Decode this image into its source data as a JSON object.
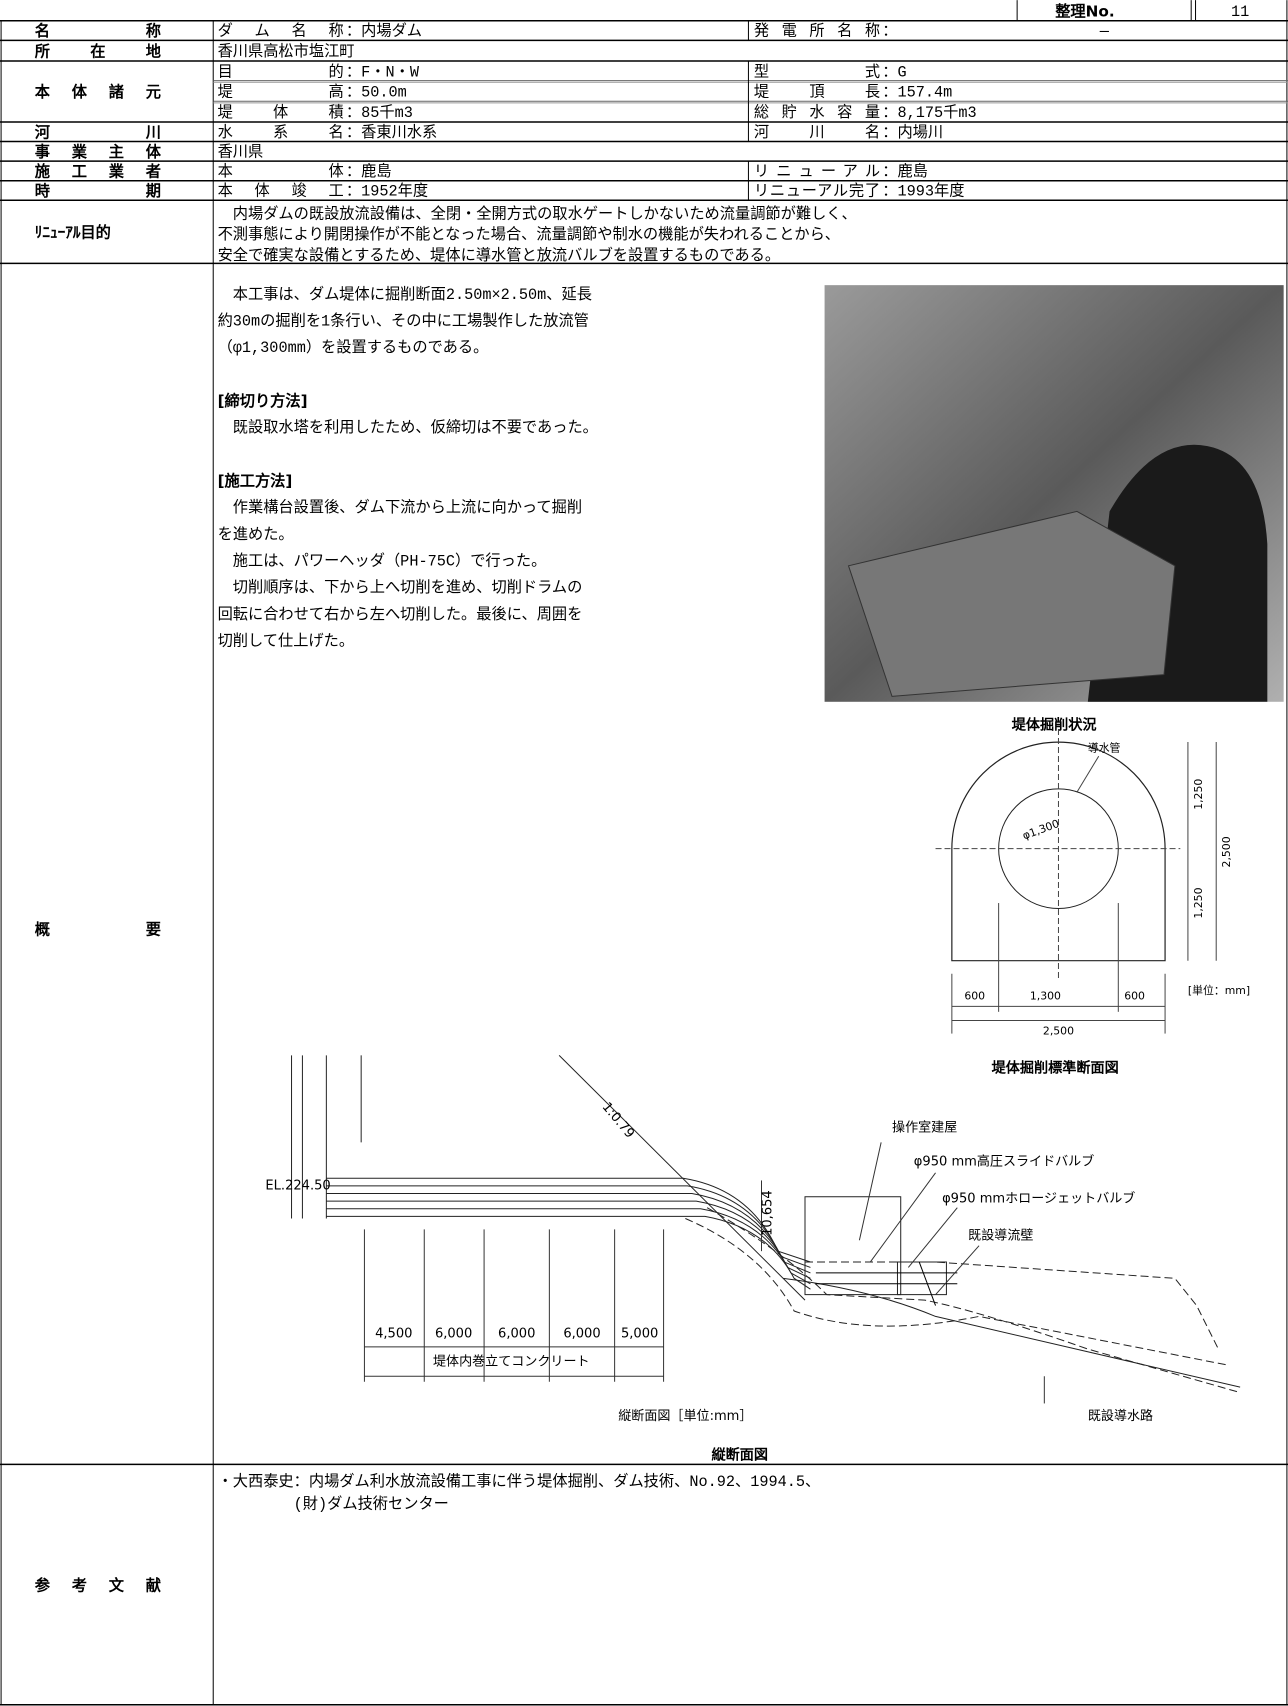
{
  "header": {
    "no_label": "整理No.",
    "no_value": "11"
  },
  "rows": [
    {
      "label": "名称",
      "lines": [
        [
          {
            "key": "ダム名称",
            "value": "：内場ダム"
          },
          {
            "key": "発電所名称",
            "value": "：",
            "note": "—"
          }
        ]
      ]
    },
    {
      "label": "所在地",
      "lines": [
        [
          {
            "value": "香川県高松市塩江町"
          }
        ]
      ]
    },
    {
      "label": "本体諸元",
      "lines": [
        [
          {
            "key": "目的",
            "value": "：F・N・W"
          },
          {
            "key": "型式",
            "value": "：G"
          }
        ],
        [
          {
            "key": "堤高",
            "value": "：50.0m"
          },
          {
            "key": "堤頂長",
            "value": "：157.4m"
          }
        ],
        [
          {
            "key": "堤体積",
            "value": "：85千m3"
          },
          {
            "key": "総貯水容量",
            "value": "：8,175千m3"
          }
        ]
      ]
    },
    {
      "label": "河川",
      "lines": [
        [
          {
            "key": "水系名",
            "value": "：香東川水系"
          },
          {
            "key": "河川名",
            "value": "：内場川"
          }
        ]
      ]
    },
    {
      "label": "事業主体",
      "lines": [
        [
          {
            "value": "香川県"
          }
        ]
      ]
    },
    {
      "label": "施工業者",
      "lines": [
        [
          {
            "key": "本体",
            "value": "：鹿島"
          },
          {
            "key": "リニューアル",
            "value": "：鹿島"
          }
        ]
      ]
    },
    {
      "label": "時期",
      "lines": [
        [
          {
            "key": "本体竣工",
            "value": "：1952年度"
          },
          {
            "key": "リニューアル完了",
            "value": "：1993年度"
          }
        ]
      ]
    }
  ],
  "renewal_purpose": {
    "label": "ﾘﾆｭｰｱﾙ目的",
    "lines": [
      "　内場ダムの既設放流設備は、全閉・全開方式の取水ゲートしかないため流量調節が難しく、",
      "不測事態により開閉操作が不能となった場合、流量調節や制水の機能が失われることから、",
      "安全で確実な設備とするため、堤体に導水管と放流バルブを設置するものである。"
    ]
  },
  "summary": {
    "label": "概要",
    "intro": [
      "　本工事は、ダム堤体に掘削断面2.50m×2.50m、延長",
      "約30mの掘削を1条行い、その中に工場製作した放流管",
      "（φ1,300mm）を設置するものである。"
    ],
    "sections": [
      {
        "heading": "[締切り方法]",
        "lines": [
          "　既設取水塔を利用したため、仮締切は不要であった。"
        ]
      },
      {
        "heading": "[施工方法]",
        "lines": [
          "　作業構台設置後、ダム下流から上流に向かって掘削",
          "を進めた。",
          "　施工は、パワーヘッダ（PH-75C）で行った。",
          "　切削順序は、下から上へ切削を進め、切削ドラムの",
          "回転に合わせて右から左へ切削した。最後に、周囲を",
          "切削して仕上げた。"
        ]
      }
    ],
    "photo_caption": "堤体掘削状況",
    "cross_section": {
      "caption": "堤体掘削標準断面図",
      "labels": [
        "導水管",
        "φ1,300",
        "1,250",
        "1,250",
        "2,500",
        "600",
        "1,300",
        "600",
        "2,500",
        "[単位：mm]"
      ]
    },
    "longitudinal": {
      "caption": "縦断面図",
      "labels": [
        "1:0.79",
        "EL.224.50",
        "10,654",
        "操作室建屋",
        "φ950 mm高圧スライドバルブ",
        "φ950 mmホロージェットバルブ",
        "既設導流壁",
        "4,500",
        "6,000",
        "6,000",
        "6,000",
        "5,000",
        "堤体内巻立てコンクリート",
        "縦断面図［単位:mm］",
        "既設導水路"
      ]
    }
  },
  "references": {
    "label": "参考文献",
    "lines": [
      "・大西泰史：内場ダム利水放流設備工事に伴う堤体掘削、ダム技術、No.92、1994.5、",
      "　　　　　(財)ダム技術センター"
    ]
  }
}
